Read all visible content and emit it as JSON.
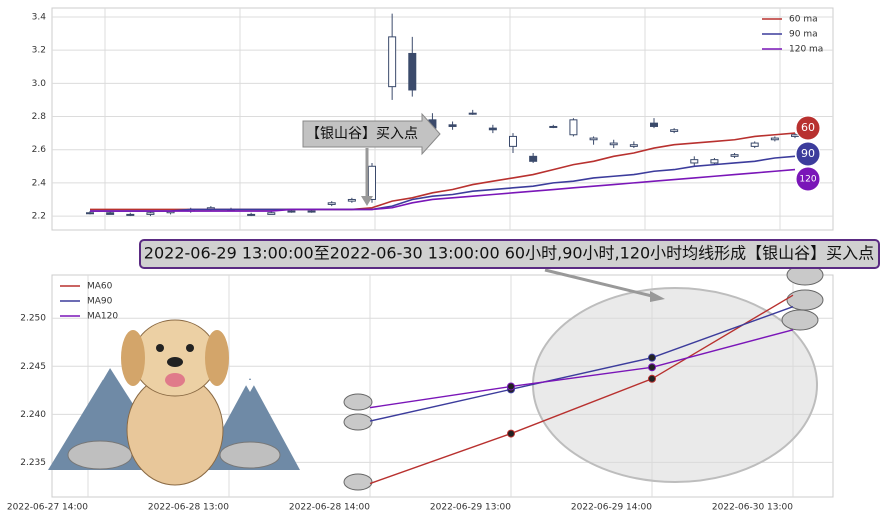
{
  "chart_data": [
    {
      "type": "candlestick",
      "ylim": [
        2.116,
        3.454
      ],
      "yticks": [
        2.2,
        2.4,
        2.6,
        2.8,
        {
          "value": 3,
          "label": "3.0"
        },
        3.2,
        3.4
      ],
      "grid": true,
      "legend": "upper right",
      "annotation": "【银山谷】买入点",
      "candles": [
        [
          2.22,
          2.23,
          2.21,
          2.22
        ],
        [
          2.22,
          2.23,
          2.21,
          2.21
        ],
        [
          2.21,
          2.22,
          2.2,
          2.21
        ],
        [
          2.21,
          2.23,
          2.2,
          2.22
        ],
        [
          2.22,
          2.23,
          2.21,
          2.23
        ],
        [
          2.23,
          2.25,
          2.22,
          2.24
        ],
        [
          2.24,
          2.26,
          2.23,
          2.25
        ],
        [
          2.24,
          2.25,
          2.23,
          2.24
        ],
        [
          2.21,
          2.22,
          2.2,
          2.21
        ],
        [
          2.21,
          2.23,
          2.21,
          2.22
        ],
        [
          2.23,
          2.24,
          2.22,
          2.23
        ],
        [
          2.23,
          2.24,
          2.22,
          2.23
        ],
        [
          2.27,
          2.29,
          2.26,
          2.28
        ],
        [
          2.29,
          2.31,
          2.28,
          2.3
        ],
        [
          2.3,
          2.52,
          2.28,
          2.5
        ],
        [
          2.98,
          3.42,
          2.9,
          3.28
        ],
        [
          3.18,
          3.28,
          2.92,
          2.96
        ],
        [
          2.78,
          2.82,
          2.7,
          2.73
        ],
        [
          2.75,
          2.77,
          2.72,
          2.74
        ],
        [
          2.82,
          2.84,
          2.81,
          2.82
        ],
        [
          2.73,
          2.75,
          2.7,
          2.72
        ],
        [
          2.62,
          2.7,
          2.58,
          2.68
        ],
        [
          2.56,
          2.58,
          2.52,
          2.53
        ],
        [
          2.74,
          2.75,
          2.73,
          2.74
        ],
        [
          2.69,
          2.79,
          2.68,
          2.78
        ],
        [
          2.66,
          2.68,
          2.63,
          2.67
        ],
        [
          2.63,
          2.66,
          2.61,
          2.64
        ],
        [
          2.62,
          2.65,
          2.61,
          2.63
        ],
        [
          2.76,
          2.79,
          2.73,
          2.74
        ],
        [
          2.71,
          2.73,
          2.7,
          2.72
        ],
        [
          2.52,
          2.56,
          2.5,
          2.54
        ],
        [
          2.52,
          2.55,
          2.51,
          2.54
        ],
        [
          2.56,
          2.58,
          2.55,
          2.57
        ],
        [
          2.62,
          2.65,
          2.61,
          2.64
        ],
        [
          2.66,
          2.68,
          2.65,
          2.67
        ],
        [
          2.68,
          2.7,
          2.67,
          2.69
        ]
      ],
      "up_color": "#ffffff",
      "down_color": "#3b4a6b",
      "series": [
        {
          "name": "60 ma",
          "badge": "60",
          "color": "#b8312f",
          "values": [
            2.24,
            2.24,
            2.24,
            2.24,
            2.24,
            2.24,
            2.24,
            2.24,
            2.24,
            2.24,
            2.24,
            2.24,
            2.24,
            2.24,
            2.25,
            2.29,
            2.31,
            2.34,
            2.36,
            2.39,
            2.41,
            2.43,
            2.45,
            2.48,
            2.51,
            2.53,
            2.56,
            2.58,
            2.61,
            2.63,
            2.64,
            2.65,
            2.66,
            2.68,
            2.69,
            2.7
          ]
        },
        {
          "name": "90 ma",
          "badge": "90",
          "color": "#3c3c9c",
          "values": [
            2.23,
            2.23,
            2.23,
            2.23,
            2.23,
            2.24,
            2.24,
            2.24,
            2.24,
            2.24,
            2.24,
            2.24,
            2.24,
            2.24,
            2.24,
            2.26,
            2.3,
            2.32,
            2.33,
            2.35,
            2.36,
            2.37,
            2.38,
            2.4,
            2.41,
            2.43,
            2.44,
            2.45,
            2.47,
            2.48,
            2.5,
            2.51,
            2.52,
            2.53,
            2.55,
            2.56
          ]
        },
        {
          "name": "120 ma",
          "badge": "120",
          "color": "#7a16b8",
          "values": [
            2.23,
            2.23,
            2.23,
            2.23,
            2.23,
            2.23,
            2.23,
            2.23,
            2.23,
            2.23,
            2.24,
            2.24,
            2.24,
            2.24,
            2.24,
            2.25,
            2.28,
            2.3,
            2.31,
            2.32,
            2.33,
            2.34,
            2.35,
            2.36,
            2.37,
            2.38,
            2.39,
            2.4,
            2.41,
            2.42,
            2.43,
            2.44,
            2.45,
            2.46,
            2.47,
            2.48
          ]
        }
      ]
    },
    {
      "type": "line",
      "categories": [
        "2022-06-27 14:00",
        "2022-06-28 13:00",
        "2022-06-28 14:00",
        "2022-06-29 13:00",
        "2022-06-29 14:00",
        "2022-06-30 13:00"
      ],
      "ylim": [
        2.2314,
        2.2545
      ],
      "yticks": [
        2.235,
        {
          "value": 2.24,
          "label": "2.240"
        },
        2.245,
        {
          "value": 2.25,
          "label": "2.250"
        }
      ],
      "grid": true,
      "legend": "upper left",
      "annotation": "2022-06-29 13:00:00至2022-06-30 13:00:00 60小时,90小时,120小时均线形成【银山谷】买入点",
      "series": [
        {
          "name": "MA60",
          "color": "#b8312f",
          "values": [
            null,
            null,
            2.2328,
            2.238,
            2.2437,
            2.2524
          ]
        },
        {
          "name": "MA90",
          "color": "#3c3c9c",
          "values": [
            null,
            null,
            2.2393,
            2.2426,
            2.2459,
            2.2512
          ]
        },
        {
          "name": "MA120",
          "color": "#7a16b8",
          "values": [
            null,
            null,
            2.2407,
            2.2429,
            2.2449,
            2.2488
          ]
        }
      ]
    }
  ]
}
